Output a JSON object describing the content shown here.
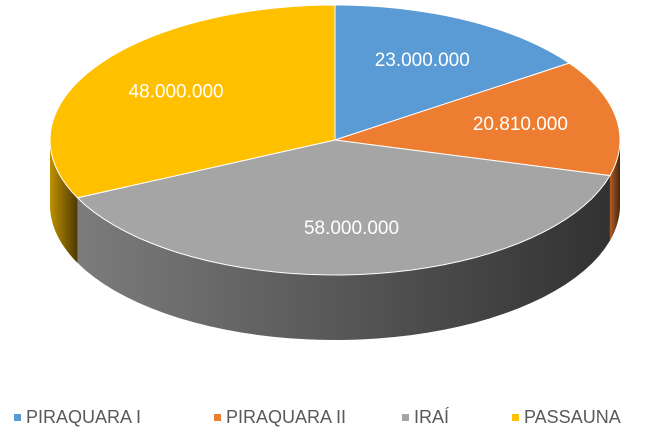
{
  "chart_data": {
    "type": "pie3d",
    "categories": [
      "PIRAQUARA I",
      "PIRAQUARA II",
      "IRAÍ",
      "PASSAUNA"
    ],
    "values": [
      23000000,
      20810000,
      58000000,
      48000000
    ],
    "value_labels": [
      "23.000.000",
      "20.810.000",
      "58.000.000",
      "48.000.000"
    ],
    "colors": [
      "#5b9bd5",
      "#ed7d31",
      "#a5a5a5",
      "#ffc000"
    ],
    "legend": "bottom"
  }
}
